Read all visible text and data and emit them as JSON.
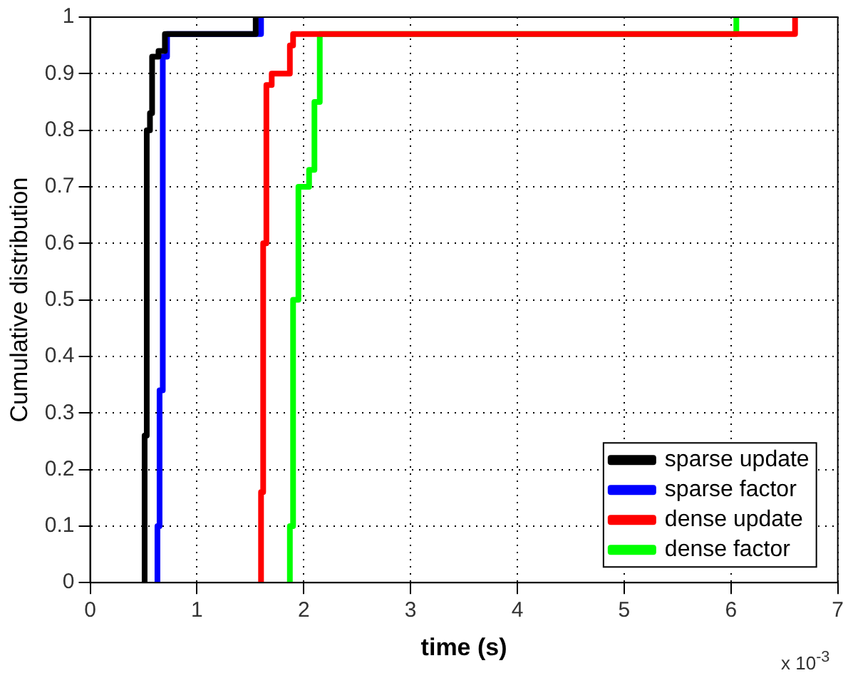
{
  "chart_data": {
    "type": "line",
    "xlabel": "time (s)",
    "ylabel": "Cumulative distribution",
    "xlim": [
      0,
      7
    ],
    "xticks": [
      0,
      1,
      2,
      3,
      4,
      5,
      6,
      7
    ],
    "ylim": [
      0,
      1
    ],
    "yticks": [
      0,
      0.1,
      0.2,
      0.3,
      0.4,
      0.5,
      0.6,
      0.7,
      0.8,
      0.9,
      1
    ],
    "grid": true,
    "legend": "bottom right",
    "marker": "none",
    "line_style": "solid",
    "annotations": [
      "x 10$^{-3}$"
    ],
    "series": [
      {
        "name": "sparse update",
        "color": "#000000",
        "x": [
          0.51,
          0.51,
          0.53,
          0.53,
          0.56,
          0.56,
          0.58,
          0.58,
          0.64,
          0.64,
          0.7,
          0.7,
          1.55,
          1.55
        ],
        "values": [
          0,
          0.26,
          0.26,
          0.8,
          0.8,
          0.83,
          0.83,
          0.93,
          0.93,
          0.94,
          0.94,
          0.97,
          0.97,
          1
        ]
      },
      {
        "name": "sparse factor",
        "color": "#0000ff",
        "x": [
          0.63,
          0.63,
          0.65,
          0.65,
          0.68,
          0.68,
          0.72,
          0.72,
          1.6,
          1.6
        ],
        "values": [
          0,
          0.1,
          0.1,
          0.34,
          0.34,
          0.93,
          0.93,
          0.97,
          0.97,
          1
        ]
      },
      {
        "name": "dense update",
        "color": "#ff0000",
        "x": [
          1.6,
          1.6,
          1.62,
          1.62,
          1.65,
          1.65,
          1.7,
          1.7,
          1.87,
          1.87,
          1.9,
          1.9,
          6.6,
          6.6
        ],
        "values": [
          0,
          0.16,
          0.16,
          0.6,
          0.6,
          0.88,
          0.88,
          0.9,
          0.9,
          0.95,
          0.95,
          0.97,
          0.97,
          1
        ]
      },
      {
        "name": "dense factor",
        "color": "#00ff00",
        "x": [
          1.87,
          1.87,
          1.9,
          1.9,
          1.95,
          1.95,
          2.05,
          2.05,
          2.1,
          2.1,
          2.15,
          2.15,
          6.05,
          6.05
        ],
        "values": [
          0,
          0.1,
          0.1,
          0.5,
          0.5,
          0.7,
          0.7,
          0.73,
          0.73,
          0.85,
          0.85,
          0.97,
          0.97,
          1
        ]
      }
    ]
  }
}
